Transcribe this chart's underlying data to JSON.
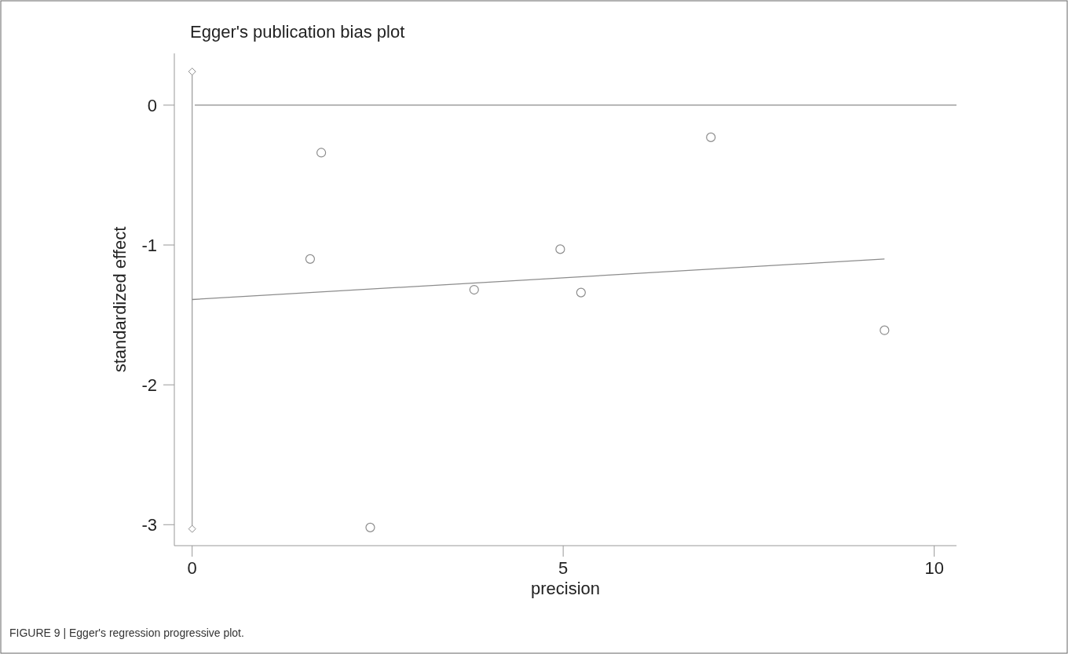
{
  "chart_data": {
    "type": "scatter",
    "title": "Egger's publication bias plot",
    "xlabel": "precision",
    "ylabel": "standardized effect",
    "xlim": [
      -0.24,
      10.3
    ],
    "ylim": [
      -3.15,
      0.37
    ],
    "xticks": [
      0,
      5,
      10
    ],
    "yticks": [
      -3,
      -2,
      -1,
      0
    ],
    "grid": false,
    "legend": false,
    "series": [
      {
        "marker": "circle",
        "color": "#8c8c8c",
        "x": [
          1.59,
          1.74,
          2.4,
          3.8,
          4.96,
          5.24,
          6.99,
          9.33
        ],
        "values": [
          -1.1,
          -0.34,
          -3.02,
          -1.32,
          -1.03,
          -1.34,
          -0.23,
          -1.61
        ]
      },
      {
        "type": "line",
        "marker": "none",
        "color": "#8c8c8c",
        "x": [
          0,
          9.33
        ],
        "values": [
          -1.39,
          -1.1
        ]
      },
      {
        "type": "scatter",
        "marker": "diamond",
        "color": "#8c8c8c",
        "x": [
          0,
          0
        ],
        "values": [
          0.24,
          -3.03
        ]
      }
    ],
    "ref_lines": [
      {
        "axis": "y",
        "value": 0,
        "color": "#8c8c8c"
      },
      {
        "axis": "x",
        "value": 0,
        "color": "#a0a0a0"
      }
    ],
    "annotations": [
      "FIGURE 9 | Egger's regression progressive plot."
    ]
  }
}
